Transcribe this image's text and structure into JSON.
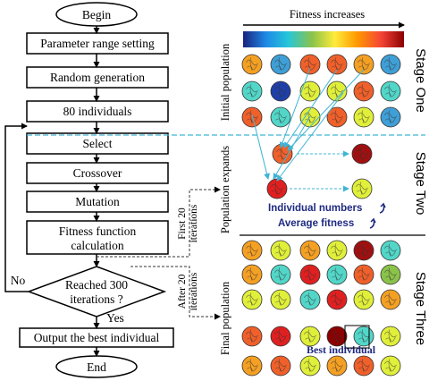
{
  "flowchart": {
    "begin": "Begin",
    "param": "Parameter range setting",
    "random": "Random generation",
    "individuals": "80 individuals",
    "select": "Select",
    "crossover": "Crossover",
    "mutation": "Mutation",
    "fitness_line1": "Fitness function",
    "fitness_line2": "calculation",
    "decision_line1": "Reached 300",
    "decision_line2": "iterations ?",
    "no": "No",
    "yes": "Yes",
    "output": "Output the best individual",
    "end": "End"
  },
  "branches": {
    "first_line1": "First 20",
    "first_line2": "iterations",
    "after_line1": "After 20",
    "after_line2": "iterations"
  },
  "right_panel": {
    "fitness_increases": "Fitness increases",
    "initial_population": "Initial population",
    "population_expands": "Population expands",
    "final_population": "Final population",
    "stage_one": "Stage One",
    "stage_two": "Stage Two",
    "stage_three": "Stage Three",
    "individual_numbers": "Individual numbers",
    "average_fitness": "Average fitness",
    "best_individual": "Best individual"
  },
  "colors": {
    "line_blue": "#40b4d4",
    "label_blue": "#1f2a80",
    "gradient": [
      "#1a237e",
      "#1e88e5",
      "#26c6da",
      "#8bc34a",
      "#ffeb3b",
      "#ff9800",
      "#f44336",
      "#8b0000"
    ],
    "stage1_rows": [
      [
        "#f4a023",
        "#3f9fd6",
        "#f0602a",
        "#f0602a",
        "#f4a023",
        "#3f9fd6"
      ],
      [
        "#52d6c8",
        "#1f3fa8",
        "#e0ef3a",
        "#e0ef3a",
        "#f0602a",
        "#52d6c8"
      ],
      [
        "#f0602a",
        "#52d6c8",
        "#e0ef3a",
        "#f0602a",
        "#e0ef3a",
        "#3f9fd6"
      ]
    ],
    "stage2_rows": [
      [
        "#f0602a",
        "#a01010"
      ],
      [
        "#e02020",
        "#e0ef3a"
      ]
    ],
    "stage3_rows": [
      [
        "#f4a023",
        "#e0ef3a",
        "#f4a023",
        "#e0ef3a",
        "#a01010",
        "#52d6c8"
      ],
      [
        "#f4a023",
        "#52d6c8",
        "#e02020",
        "#52d6c8",
        "#f0602a",
        "#8bc34a"
      ],
      [
        "#e0ef3a",
        "#e0ef3a",
        "#52d6c8",
        "#e02020",
        "#e0ef3a",
        "#f4a023"
      ],
      [
        "#f0602a",
        "#e02020",
        "#e0ef3a",
        "#8b0000",
        "#52d6c8",
        "#e0ef3a"
      ],
      [
        "#f4a023",
        "#f0602a",
        "#e0ef3a",
        "#f4a023",
        "#f0602a",
        "#e0ef3a"
      ]
    ]
  }
}
